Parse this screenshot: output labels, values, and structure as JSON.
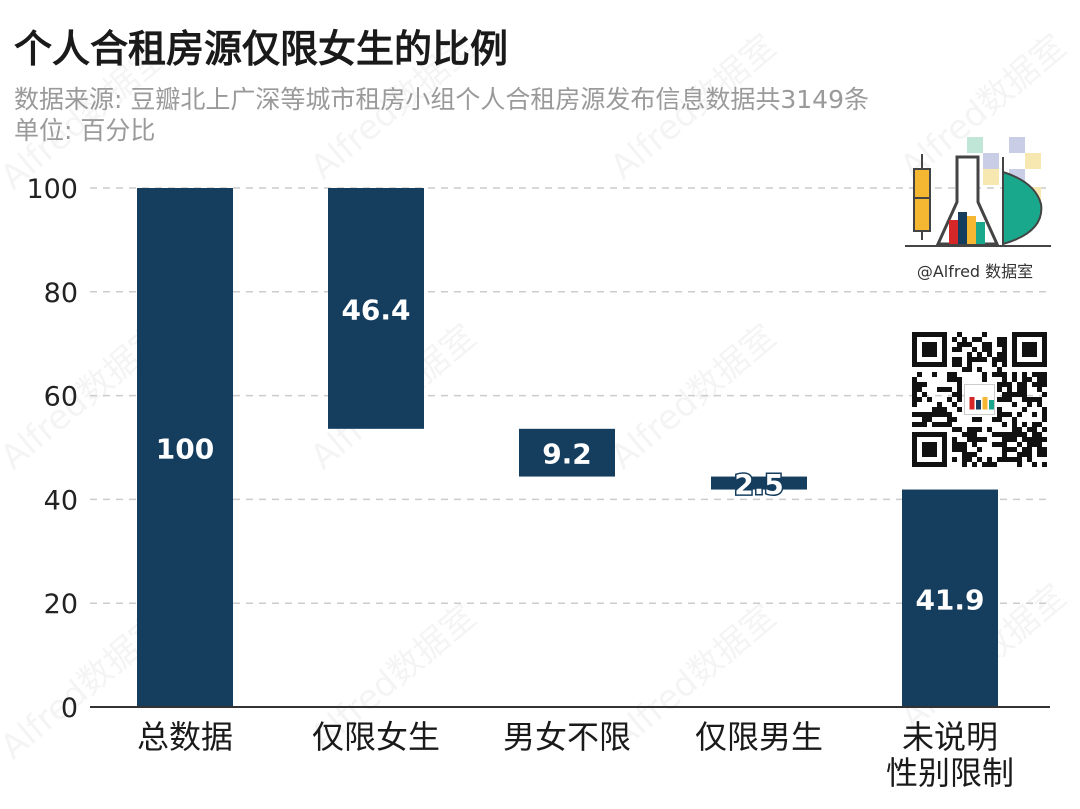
{
  "title": "个人合租房源仅限女生的比例",
  "subtitle_source": "数据来源: 豆瓣北上广深等城市租房小组个人合租房源发布信息数据共3149条",
  "subtitle_unit": "单位: 百分比",
  "watermark": "Alfred数据室",
  "logo_caption": "@Alfred 数据室",
  "colors": {
    "bar": "#143d5e",
    "axis": "#333333",
    "grid": "#cccccc",
    "label": "#ffffff"
  },
  "chart_data": {
    "type": "bar",
    "subtype": "waterfall",
    "categories": [
      "总数据",
      "仅限女生",
      "男女不限",
      "仅限男生",
      "未说明\n性别限制"
    ],
    "values": [
      100,
      46.4,
      9.2,
      2.5,
      41.9
    ],
    "bar_ranges": [
      [
        0,
        100
      ],
      [
        53.6,
        100
      ],
      [
        44.4,
        53.6
      ],
      [
        41.9,
        44.4
      ],
      [
        0,
        41.9
      ]
    ],
    "labels": [
      "100",
      "46.4",
      "9.2",
      "2.5",
      "41.9"
    ],
    "ylim": [
      0,
      100
    ],
    "yticks": [
      0,
      20,
      40,
      60,
      80,
      100
    ],
    "grid": true,
    "xlabel": "",
    "ylabel": ""
  }
}
